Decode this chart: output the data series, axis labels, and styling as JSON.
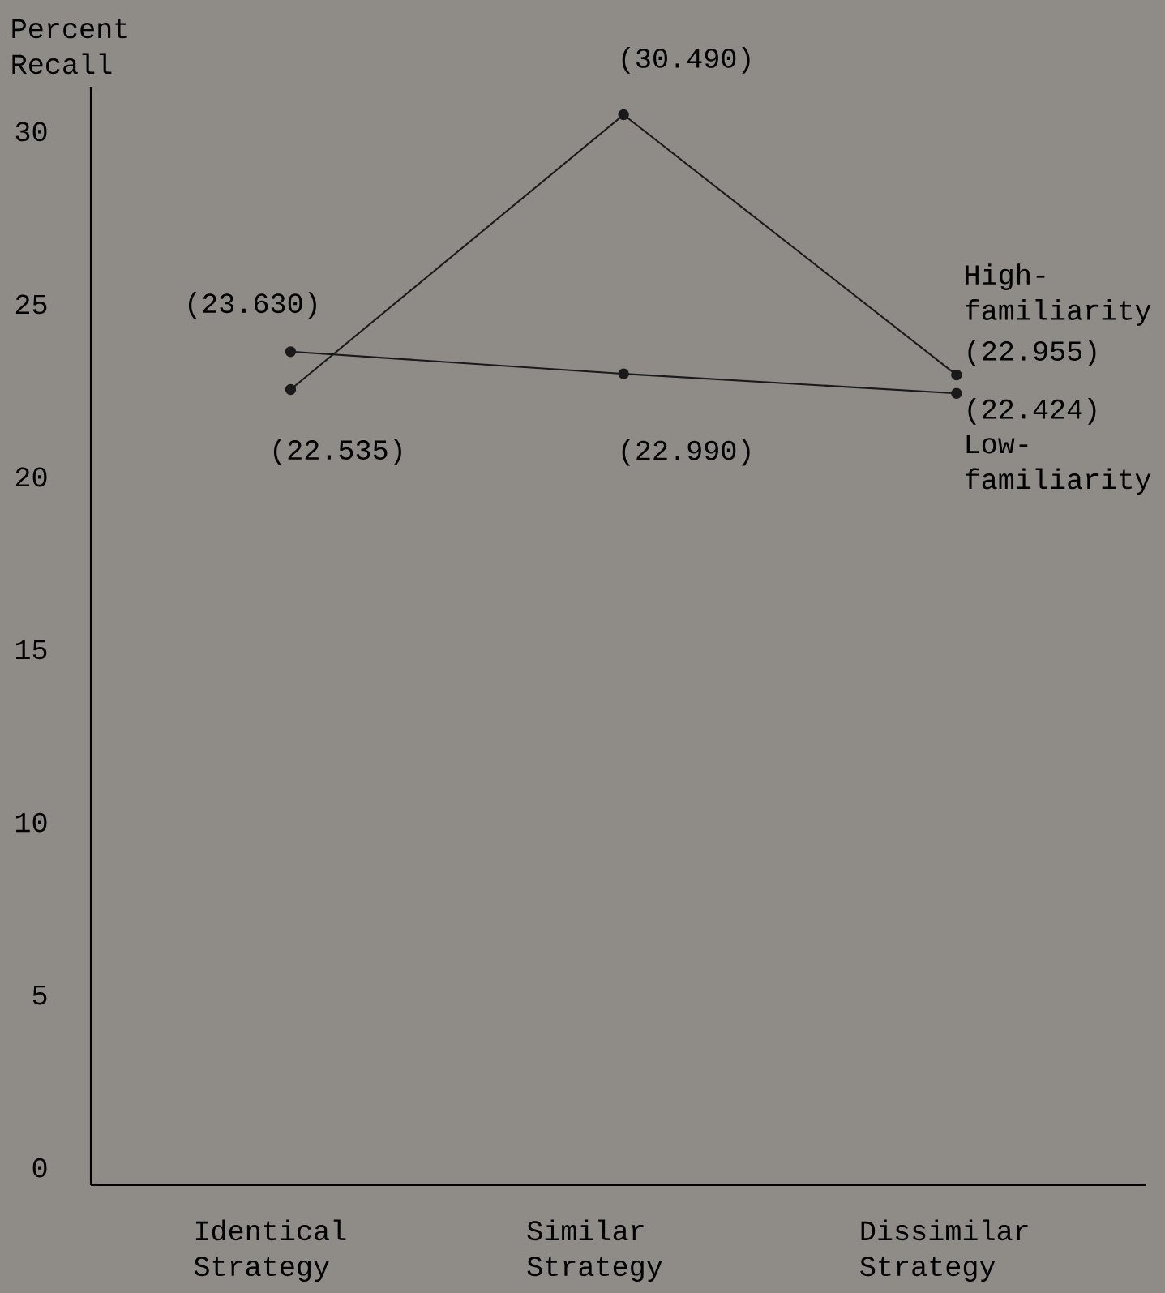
{
  "chart_data": {
    "type": "line",
    "ylabel": "Percent Recall",
    "categories": [
      "Identical Strategy",
      "Similar Strategy",
      "Dissimilar Strategy"
    ],
    "ylim": [
      -0.5,
      31.3
    ],
    "yticks": [
      0,
      5,
      10,
      15,
      20,
      25,
      30
    ],
    "marker": "circle",
    "line_style": "solid",
    "series": [
      {
        "name": "High-familiarity",
        "color": "#1a1a1a",
        "values": [
          22.535,
          30.49,
          22.955
        ],
        "value_labels": [
          "(22.535)",
          "(30.490)",
          "(22.955)"
        ]
      },
      {
        "name": "Low-familiarity",
        "color": "#1a1a1a",
        "values": [
          23.63,
          22.99,
          22.424
        ],
        "value_labels": [
          "(23.630)",
          "(22.990)",
          "(22.424)"
        ]
      }
    ]
  }
}
